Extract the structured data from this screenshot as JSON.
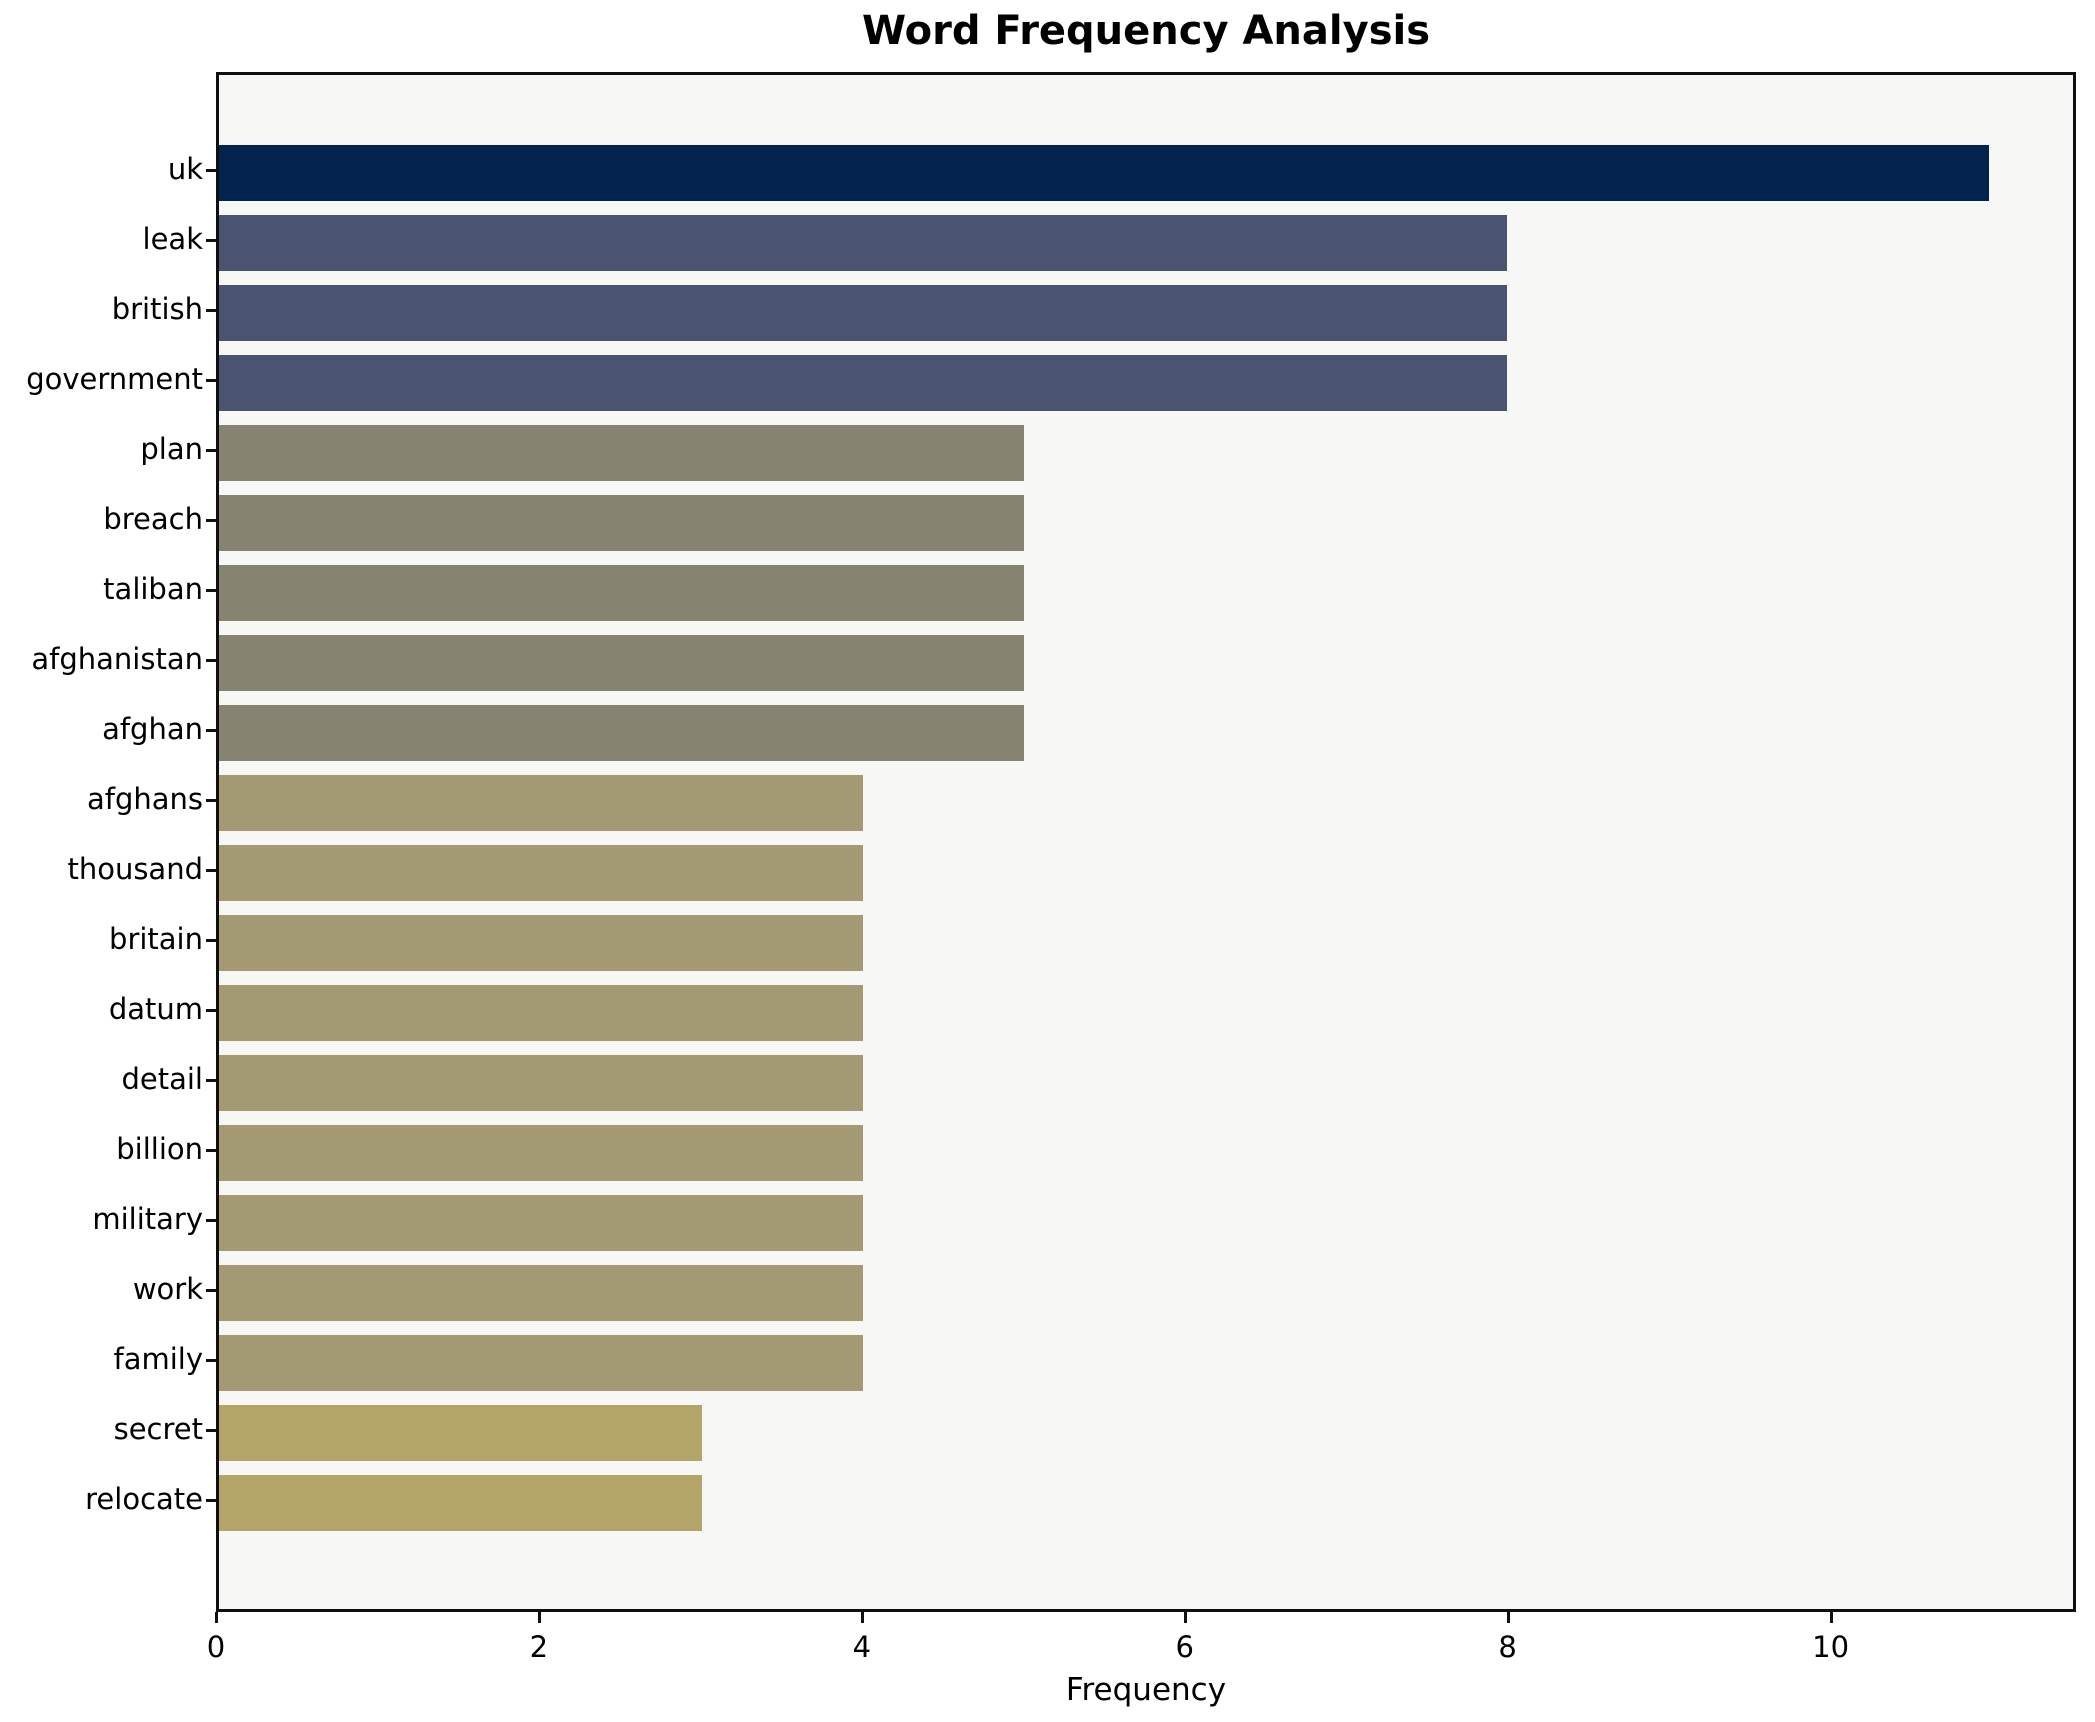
{
  "chart_data": {
    "type": "bar",
    "orientation": "horizontal",
    "title": "Word Frequency Analysis",
    "xlabel": "Frequency",
    "ylabel": "",
    "categories": [
      "uk",
      "leak",
      "british",
      "government",
      "plan",
      "breach",
      "taliban",
      "afghanistan",
      "afghan",
      "afghans",
      "thousand",
      "britain",
      "datum",
      "detail",
      "billion",
      "military",
      "work",
      "family",
      "secret",
      "relocate"
    ],
    "values": [
      11,
      8,
      8,
      8,
      5,
      5,
      5,
      5,
      5,
      4,
      4,
      4,
      4,
      4,
      4,
      4,
      4,
      4,
      3,
      3
    ],
    "bar_colors": [
      "#02234e",
      "#4a5471",
      "#4a5471",
      "#4a5471",
      "#868370",
      "#868370",
      "#868370",
      "#868370",
      "#868370",
      "#a39a74",
      "#a39a74",
      "#a39a74",
      "#a39a74",
      "#a39a74",
      "#a39a74",
      "#a39a74",
      "#a39a74",
      "#a39a74",
      "#b2a567",
      "#b2a567"
    ],
    "xticks": [
      0,
      2,
      4,
      6,
      8,
      10
    ],
    "xlim": [
      0,
      11.52
    ],
    "grid": false,
    "legend": null,
    "plot_background": "#f7f7f5",
    "figure_background": "#ffffff",
    "spine_color": "#0f0f0f",
    "text_color": "#000000"
  }
}
